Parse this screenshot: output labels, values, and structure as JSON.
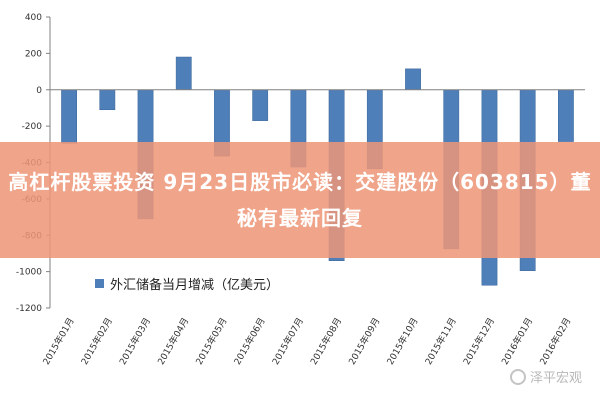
{
  "headline": "高杠杆股票投资 9月23日股市必读：交建股份（603815）董秘有最新回复",
  "watermark": "泽平宏观",
  "colors": {
    "bar": "#4f7fb8",
    "bar_edge": "#3a6599",
    "axis": "#808080",
    "banner": "#ee9678"
  },
  "chart_data": {
    "type": "bar",
    "categories": [
      "2015年01月",
      "2015年02月",
      "2015年03月",
      "2015年04月",
      "2015年05月",
      "2015年06月",
      "2015年07月",
      "2015年08月",
      "2015年09月",
      "2015年10月",
      "2015年11月",
      "2015年12月",
      "2016年01月",
      "2016年02月"
    ],
    "series": [
      {
        "name": "外汇储备当月增减（亿美元）",
        "values": [
          -295,
          -110,
          -710,
          180,
          -365,
          -170,
          -425,
          -940,
          -435,
          115,
          -875,
          -1075,
          -995,
          -285
        ]
      }
    ],
    "ylim": [
      -1200,
      400
    ],
    "yticks": [
      400,
      200,
      0,
      -200,
      -400,
      -600,
      -800,
      -1000,
      -1200
    ],
    "title": "",
    "xlabel": "",
    "ylabel": "",
    "legend_position": "bottom-left",
    "grid": false
  }
}
